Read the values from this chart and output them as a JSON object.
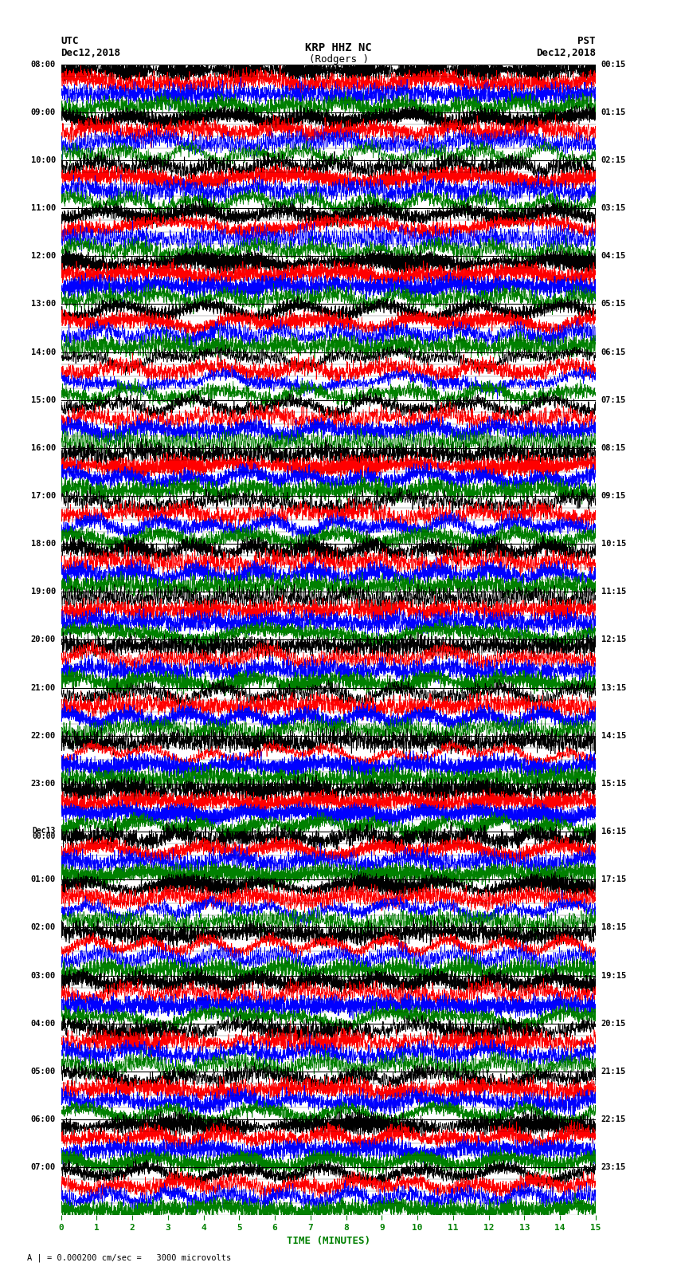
{
  "title_line1": "KRP HHZ NC",
  "title_line2": "(Rodgers )",
  "scale_label": "I = 0.000200 cm/sec",
  "utc_label": "UTC",
  "pst_label": "PST",
  "utc_date": "Dec12,2018",
  "pst_date": "Dec12,2018",
  "xlabel": "TIME (MINUTES)",
  "footer": "A | = 0.000200 cm/sec =   3000 microvolts",
  "xlim": [
    0,
    15
  ],
  "xticks": [
    0,
    1,
    2,
    3,
    4,
    5,
    6,
    7,
    8,
    9,
    10,
    11,
    12,
    13,
    14,
    15
  ],
  "num_hours": 24,
  "sub_traces_per_hour": 4,
  "trace_duration_minutes": 15,
  "samples_per_trace": 3000,
  "left_times_labeled": [
    "08:00",
    "09:00",
    "10:00",
    "11:00",
    "12:00",
    "13:00",
    "14:00",
    "15:00",
    "16:00",
    "17:00",
    "18:00",
    "19:00",
    "20:00",
    "21:00",
    "22:00",
    "23:00",
    "Dec13\n00:00",
    "01:00",
    "02:00",
    "03:00",
    "04:00",
    "05:00",
    "06:00",
    "07:00"
  ],
  "right_times_labeled": [
    "00:15",
    "01:15",
    "02:15",
    "03:15",
    "04:15",
    "05:15",
    "06:15",
    "07:15",
    "08:15",
    "09:15",
    "10:15",
    "11:15",
    "12:15",
    "13:15",
    "14:15",
    "15:15",
    "16:15",
    "17:15",
    "18:15",
    "19:15",
    "20:15",
    "21:15",
    "22:15",
    "23:15"
  ],
  "sub_colors": [
    "black",
    "red",
    "blue",
    "green"
  ],
  "bg_color": "white",
  "fig_width": 8.5,
  "fig_height": 16.13,
  "dpi": 100
}
